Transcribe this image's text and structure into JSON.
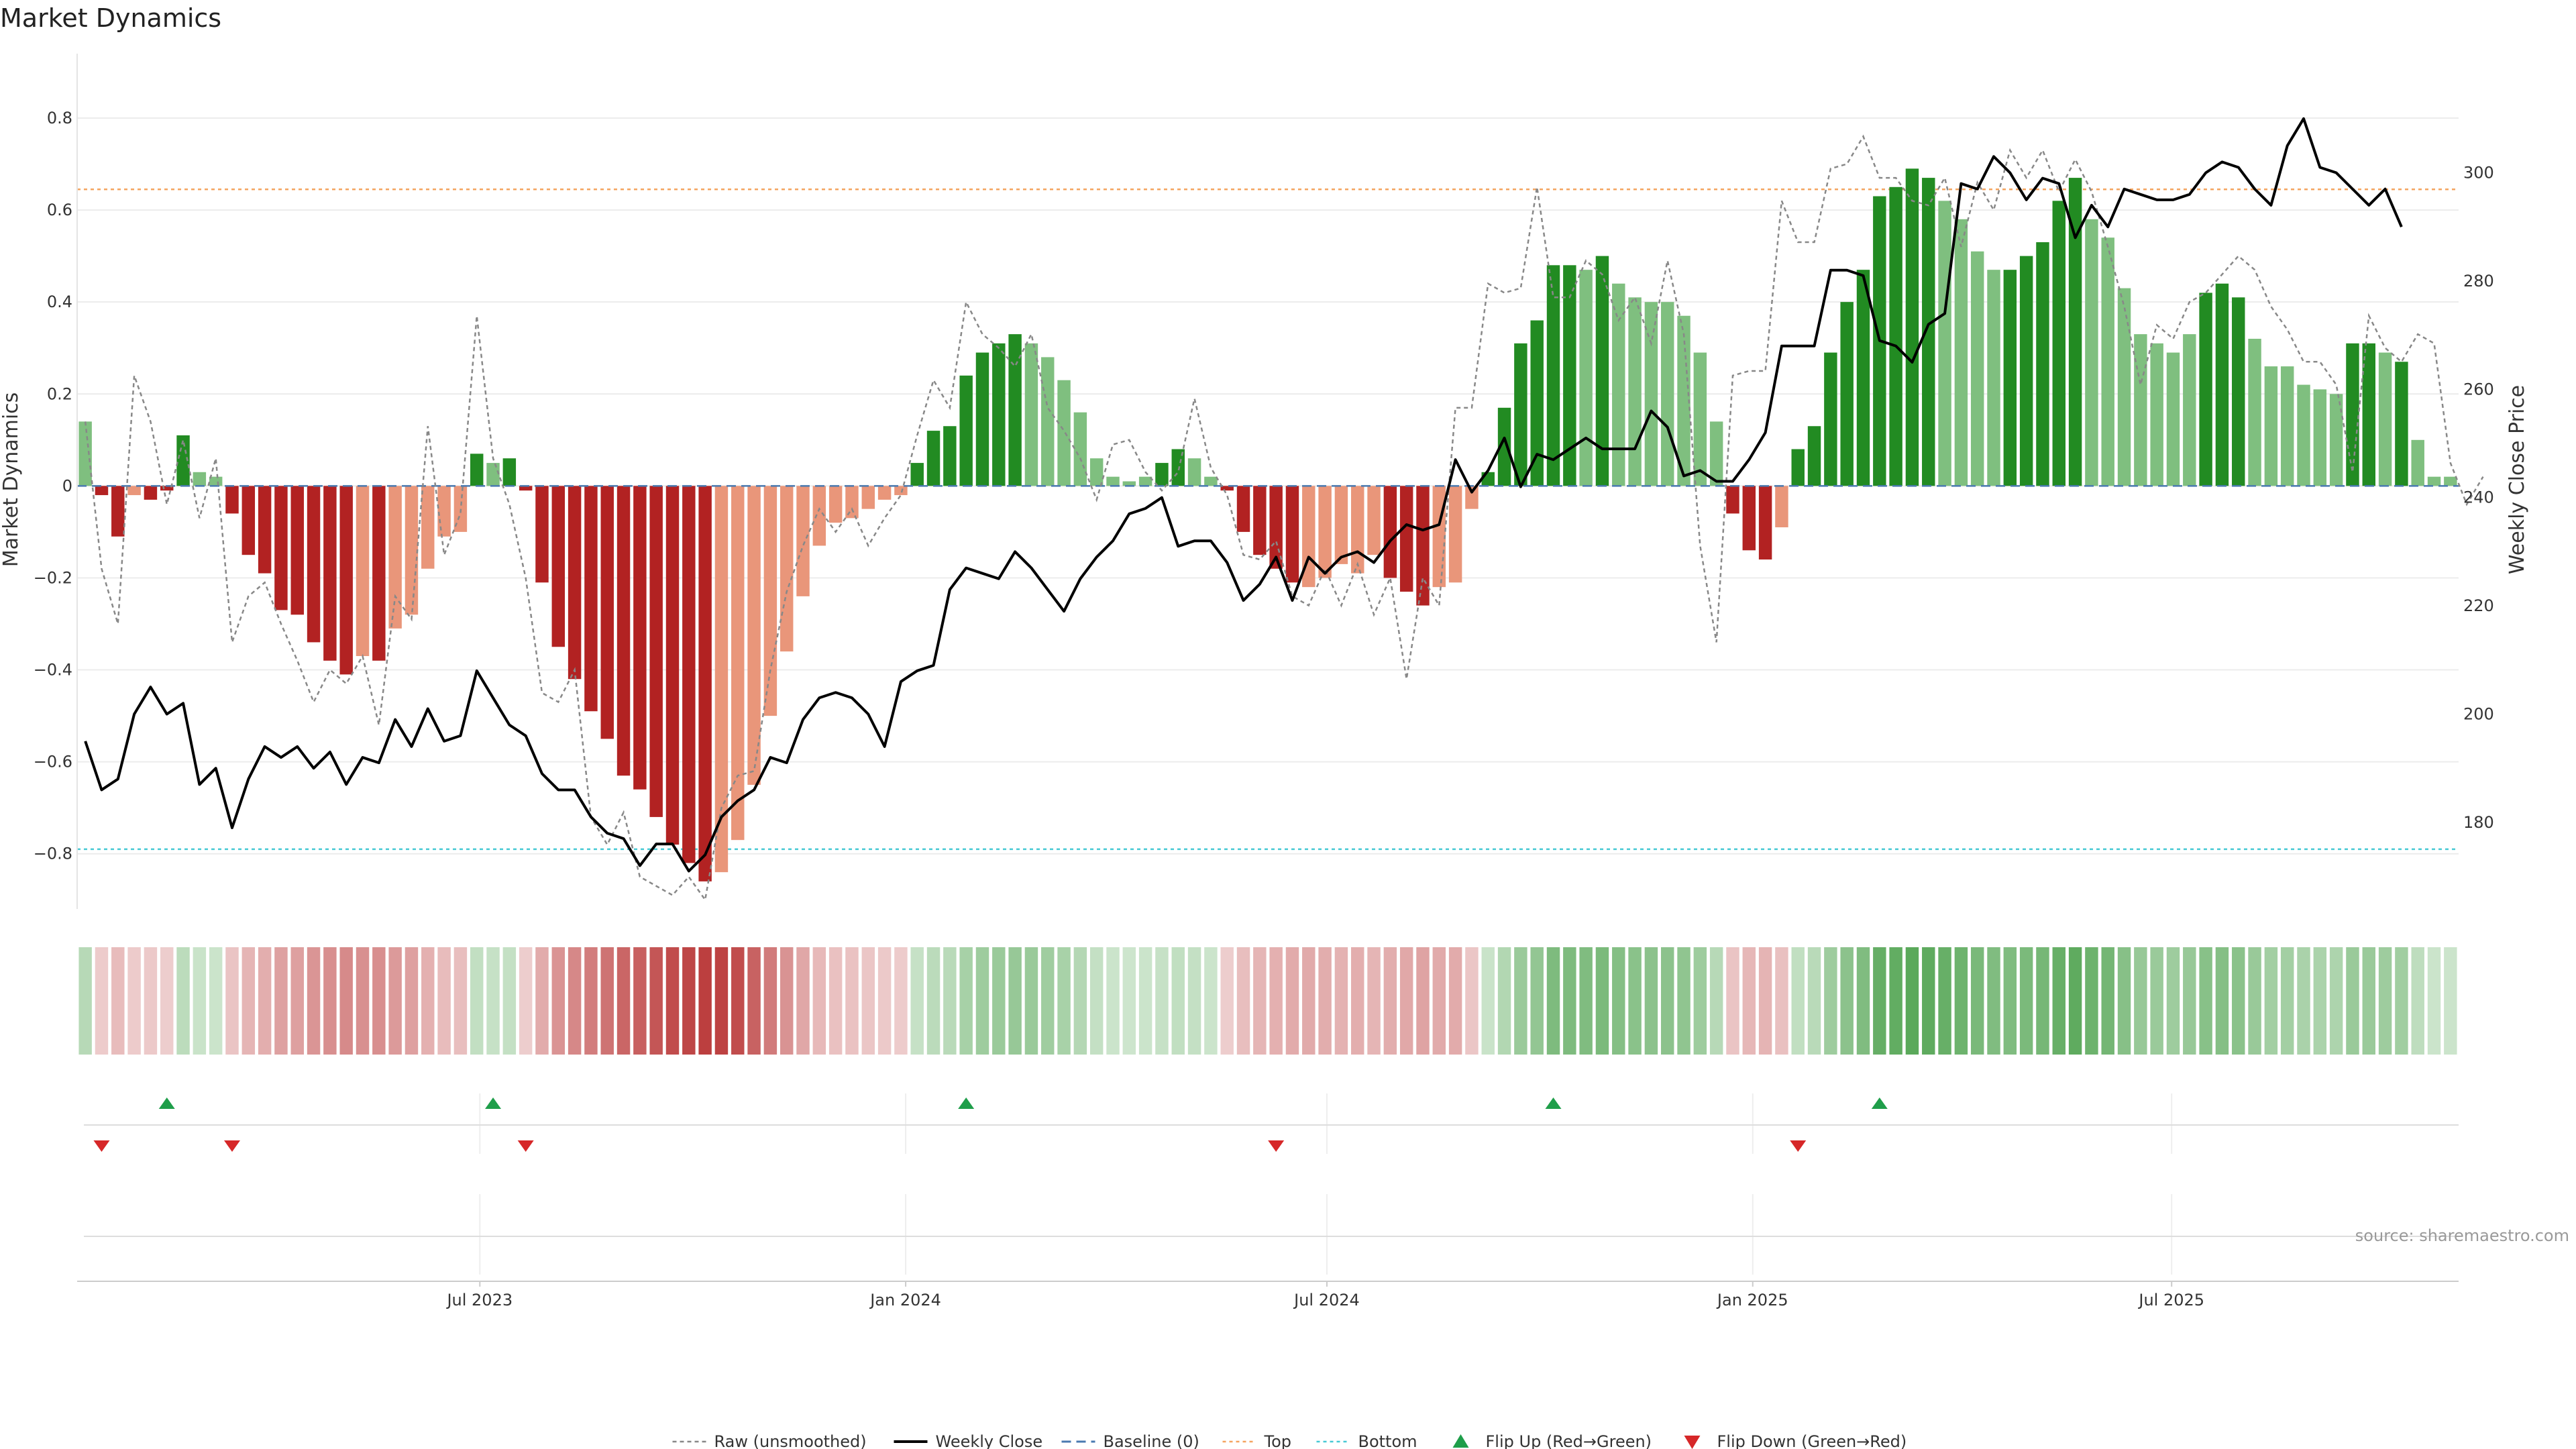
{
  "chart_data": {
    "type": "bar",
    "title": "Market Dynamics",
    "ylabel_left": "Market Dynamics",
    "ylabel_right": "Weekly Close Price",
    "source": "source: sharemaestro.com",
    "ylim_left": [
      -0.92,
      0.94
    ],
    "ylim_right": [
      164,
      322
    ],
    "yticks_left": [
      -0.8,
      -0.6,
      -0.4,
      -0.2,
      0,
      0.2,
      0.4,
      0.6,
      0.8
    ],
    "yticks_left_labels": [
      "−0.8",
      "−0.6",
      "−0.4",
      "−0.2",
      "0",
      "0.2",
      "0.4",
      "0.6",
      "0.8"
    ],
    "yticks_right": [
      180,
      200,
      220,
      240,
      260,
      280,
      300
    ],
    "yticks_right_labels": [
      "180",
      "200",
      "220",
      "240",
      "260",
      "280",
      "300"
    ],
    "x_start": "2023-01-08",
    "x_end": "2025-11-02",
    "xticks": [
      {
        "date": "2023-07-01",
        "label": "Jul 2023"
      },
      {
        "date": "2024-01-01",
        "label": "Jan 2024"
      },
      {
        "date": "2024-07-01",
        "label": "Jul 2024"
      },
      {
        "date": "2025-01-01",
        "label": "Jan 2025"
      },
      {
        "date": "2025-07-01",
        "label": "Jul 2025"
      }
    ],
    "top_threshold": 0.645,
    "bottom_threshold": -0.79,
    "baseline": 0,
    "colors": {
      "strong_green": "#228b22",
      "light_green": "#7fbf7f",
      "strong_red": "#b22222",
      "light_red": "#e9967a",
      "close": "#000000",
      "raw": "#888888",
      "top": "#f4a460",
      "bottom": "#48c9d4",
      "baseline": "#4a7ab0",
      "flip_up": "#1f9e4a",
      "flip_down": "#d62728"
    },
    "series": [
      {
        "name": "Market Dynamics",
        "values": [
          0.14,
          -0.02,
          -0.11,
          -0.02,
          -0.03,
          -0.01,
          0.11,
          0.03,
          0.02,
          -0.06,
          -0.15,
          -0.19,
          -0.27,
          -0.28,
          -0.34,
          -0.38,
          -0.41,
          -0.37,
          -0.38,
          -0.31,
          -0.28,
          -0.18,
          -0.11,
          -0.1,
          0.07,
          0.05,
          0.06,
          -0.01,
          -0.21,
          -0.35,
          -0.42,
          -0.49,
          -0.55,
          -0.63,
          -0.66,
          -0.72,
          -0.78,
          -0.82,
          -0.86,
          -0.84,
          -0.77,
          -0.65,
          -0.5,
          -0.36,
          -0.24,
          -0.13,
          -0.08,
          -0.07,
          -0.05,
          -0.03,
          -0.02,
          0.05,
          0.12,
          0.13,
          0.24,
          0.29,
          0.31,
          0.33,
          0.31,
          0.28,
          0.23,
          0.16,
          0.06,
          0.02,
          0.01,
          0.02,
          0.05,
          0.08,
          0.06,
          0.02,
          -0.01,
          -0.1,
          -0.15,
          -0.18,
          -0.21,
          -0.22,
          -0.2,
          -0.17,
          -0.19,
          -0.15,
          -0.2,
          -0.23,
          -0.26,
          -0.22,
          -0.21,
          -0.05,
          0.03,
          0.17,
          0.31,
          0.36,
          0.48,
          0.48,
          0.47,
          0.5,
          0.44,
          0.41,
          0.4,
          0.4,
          0.37,
          0.29,
          0.14,
          -0.06,
          -0.14,
          -0.16,
          -0.09,
          0.08,
          0.13,
          0.29,
          0.4,
          0.47,
          0.63,
          0.65,
          0.69,
          0.67,
          0.62,
          0.58,
          0.51,
          0.47,
          0.47,
          0.5,
          0.53,
          0.62,
          0.67,
          0.58,
          0.54,
          0.43,
          0.33,
          0.31,
          0.29,
          0.33,
          0.42,
          0.44,
          0.41,
          0.32,
          0.26,
          0.26,
          0.22,
          0.21,
          0.2,
          0.31,
          0.31,
          0.29,
          0.27,
          0.1,
          0.02,
          0.02
        ],
        "styles": [
          1,
          2,
          2,
          3,
          2,
          2,
          0,
          1,
          1,
          2,
          2,
          2,
          2,
          2,
          2,
          2,
          2,
          3,
          2,
          3,
          3,
          3,
          3,
          3,
          0,
          1,
          0,
          2,
          2,
          2,
          2,
          2,
          2,
          2,
          2,
          2,
          2,
          2,
          2,
          3,
          3,
          3,
          3,
          3,
          3,
          3,
          3,
          3,
          3,
          3,
          3,
          0,
          0,
          0,
          0,
          0,
          0,
          0,
          1,
          1,
          1,
          1,
          1,
          1,
          1,
          1,
          0,
          0,
          1,
          1,
          2,
          2,
          2,
          2,
          2,
          3,
          3,
          3,
          3,
          3,
          2,
          2,
          2,
          3,
          3,
          3,
          0,
          0,
          0,
          0,
          0,
          0,
          1,
          0,
          1,
          1,
          1,
          1,
          1,
          1,
          1,
          2,
          2,
          2,
          3,
          0,
          0,
          0,
          0,
          0,
          0,
          0,
          0,
          0,
          1,
          1,
          1,
          1,
          0,
          0,
          0,
          0,
          0,
          1,
          1,
          1,
          1,
          1,
          1,
          1,
          0,
          0,
          0,
          1,
          1,
          1,
          1,
          1,
          1,
          0,
          0,
          1,
          0,
          1,
          1,
          1
        ]
      },
      {
        "name": "Raw (unsmoothed)",
        "values": [
          0.14,
          -0.18,
          -0.3,
          0.24,
          0.14,
          -0.04,
          0.1,
          -0.07,
          0.06,
          -0.34,
          -0.24,
          -0.21,
          -0.3,
          -0.38,
          -0.47,
          -0.4,
          -0.43,
          -0.37,
          -0.52,
          -0.24,
          -0.29,
          0.13,
          -0.15,
          -0.06,
          0.37,
          0.06,
          -0.04,
          -0.2,
          -0.45,
          -0.47,
          -0.4,
          -0.72,
          -0.78,
          -0.71,
          -0.85,
          -0.87,
          -0.89,
          -0.85,
          -0.9,
          -0.7,
          -0.63,
          -0.62,
          -0.4,
          -0.23,
          -0.13,
          -0.05,
          -0.1,
          -0.05,
          -0.13,
          -0.07,
          -0.02,
          0.11,
          0.23,
          0.17,
          0.4,
          0.33,
          0.3,
          0.26,
          0.33,
          0.17,
          0.12,
          0.06,
          -0.03,
          0.09,
          0.1,
          0.03,
          -0.01,
          0.03,
          0.19,
          0.04,
          -0.02,
          -0.15,
          -0.16,
          -0.12,
          -0.24,
          -0.26,
          -0.18,
          -0.26,
          -0.17,
          -0.28,
          -0.2,
          -0.42,
          -0.2,
          -0.26,
          0.17,
          0.17,
          0.44,
          0.42,
          0.43,
          0.65,
          0.41,
          0.41,
          0.49,
          0.46,
          0.36,
          0.41,
          0.31,
          0.49,
          0.33,
          -0.13,
          -0.34,
          0.24,
          0.25,
          0.25,
          0.62,
          0.53,
          0.53,
          0.69,
          0.7,
          0.76,
          0.67,
          0.67,
          0.62,
          0.61,
          0.67,
          0.52,
          0.66,
          0.6,
          0.73,
          0.67,
          0.73,
          0.64,
          0.71,
          0.64,
          0.52,
          0.39,
          0.22,
          0.35,
          0.32,
          0.4,
          0.42,
          0.46,
          0.5,
          0.47,
          0.39,
          0.34,
          0.27,
          0.27,
          0.22,
          0.03,
          0.37,
          0.3,
          0.27,
          0.33,
          0.31,
          0.05,
          -0.04,
          0.02
        ]
      },
      {
        "name": "Weekly Close",
        "values": [
          195,
          186,
          188,
          200,
          205,
          200,
          202,
          187,
          190,
          179,
          188,
          194,
          192,
          194,
          190,
          193,
          187,
          192,
          191,
          199,
          194,
          201,
          195,
          196,
          208,
          203,
          198,
          196,
          189,
          186,
          186,
          181,
          178,
          177,
          172,
          176,
          176,
          171,
          174,
          181,
          184,
          186,
          192,
          191,
          199,
          203,
          204,
          203,
          200,
          194,
          206,
          208,
          209,
          223,
          227,
          226,
          225,
          230,
          227,
          223,
          219,
          225,
          229,
          232,
          237,
          238,
          240,
          231,
          232,
          232,
          228,
          221,
          224,
          229,
          221,
          229,
          226,
          229,
          230,
          228,
          232,
          235,
          234,
          235,
          247,
          241,
          245,
          251,
          242,
          248,
          247,
          249,
          251,
          249,
          249,
          249,
          256,
          253,
          244,
          245,
          243,
          243,
          247,
          252,
          268,
          268,
          268,
          282,
          282,
          281,
          269,
          268,
          265,
          272,
          274,
          298,
          297,
          303,
          300,
          295,
          299,
          298,
          288,
          294,
          290,
          297,
          296,
          295,
          295,
          296,
          300,
          302,
          301,
          297,
          294,
          305,
          310,
          301,
          300,
          297,
          294,
          297,
          290
        ]
      }
    ],
    "flip_up_indices": [
      5,
      25,
      54,
      90,
      110
    ],
    "flip_down_indices": [
      1,
      9,
      27,
      73,
      105
    ],
    "legend": [
      {
        "label": "Raw (unsmoothed)",
        "kind": "raw"
      },
      {
        "label": "Weekly Close",
        "kind": "close"
      },
      {
        "label": "Baseline (0)",
        "kind": "baseline"
      },
      {
        "label": "Top",
        "kind": "top"
      },
      {
        "label": "Bottom",
        "kind": "bottom"
      },
      {
        "label": "Flip Up (Red→Green)",
        "kind": "flip_up"
      },
      {
        "label": "Flip Down (Green→Red)",
        "kind": "flip_down"
      }
    ],
    "legend_position": "bottom-center",
    "grid": true
  }
}
